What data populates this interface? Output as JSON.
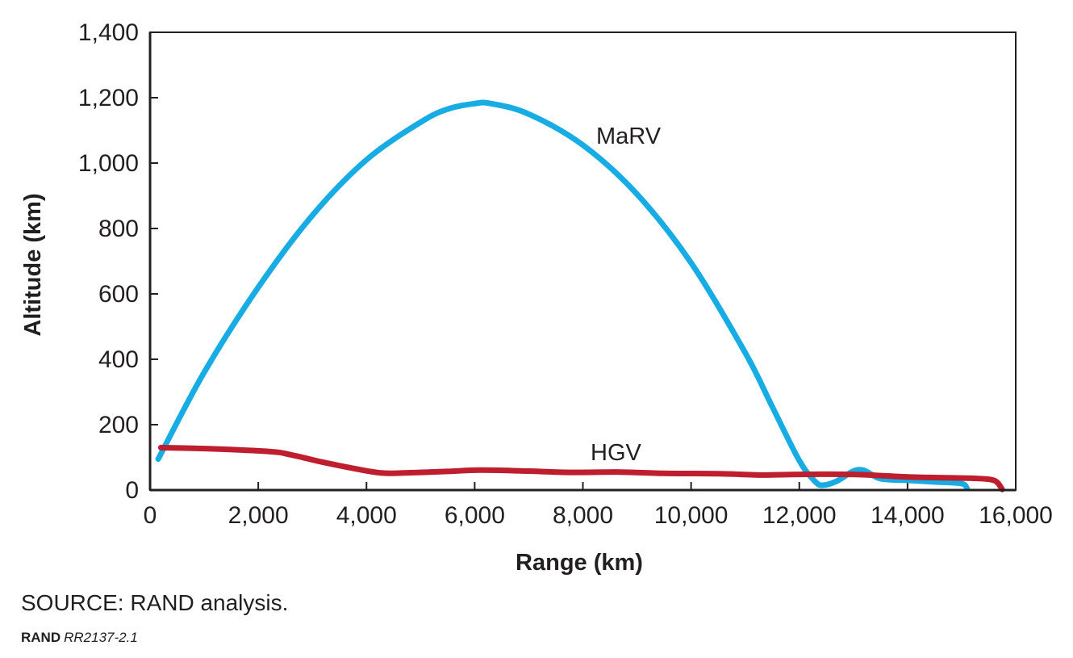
{
  "chart_data": {
    "type": "line",
    "title": "",
    "xlabel": "Range (km)",
    "ylabel": "Altitude (km)",
    "xlim": [
      0,
      16000
    ],
    "ylim": [
      0,
      1400
    ],
    "xticks": [
      0,
      2000,
      4000,
      6000,
      8000,
      10000,
      12000,
      14000,
      16000
    ],
    "yticks": [
      0,
      200,
      400,
      600,
      800,
      1000,
      1200,
      1400
    ],
    "xtick_labels": [
      "0",
      "2,000",
      "4,000",
      "6,000",
      "8,000",
      "10,000",
      "12,000",
      "14,000",
      "16,000"
    ],
    "ytick_labels": [
      "0",
      "200",
      "400",
      "600",
      "800",
      "1,000",
      "1,200",
      "1,400"
    ],
    "grid": false,
    "series": [
      {
        "name": "MaRV",
        "color": "#17ace3",
        "x": [
          150,
          1000,
          2000,
          3000,
          4000,
          5000,
          5500,
          6000,
          6300,
          7000,
          8000,
          9000,
          10000,
          11000,
          11500,
          12000,
          12300,
          12450,
          12700,
          13000,
          13200,
          13500,
          14000,
          14500,
          15000,
          15100
        ],
        "y": [
          95,
          360,
          620,
          840,
          1010,
          1125,
          1165,
          1182,
          1182,
          1150,
          1055,
          905,
          695,
          420,
          255,
          90,
          25,
          15,
          28,
          58,
          60,
          35,
          30,
          25,
          20,
          5
        ]
      },
      {
        "name": "HGV",
        "color": "#be1e2d",
        "x": [
          200,
          1000,
          2200,
          2600,
          3200,
          3800,
          4300,
          4800,
          5500,
          6100,
          7000,
          7800,
          8700,
          9500,
          10500,
          11300,
          12000,
          13000,
          14000,
          14600,
          15200,
          15500,
          15650,
          15750
        ],
        "y": [
          130,
          127,
          118,
          108,
          85,
          65,
          52,
          53,
          57,
          61,
          58,
          54,
          55,
          51,
          50,
          46,
          48,
          48,
          40,
          38,
          36,
          33,
          25,
          2
        ]
      }
    ],
    "annotations": [
      {
        "text": "MaRV",
        "series": "MaRV"
      },
      {
        "text": "HGV",
        "series": "HGV"
      }
    ]
  },
  "footer": {
    "source": "SOURCE: RAND analysis.",
    "brand": "RAND",
    "report_id": "RR2137-2.1"
  }
}
